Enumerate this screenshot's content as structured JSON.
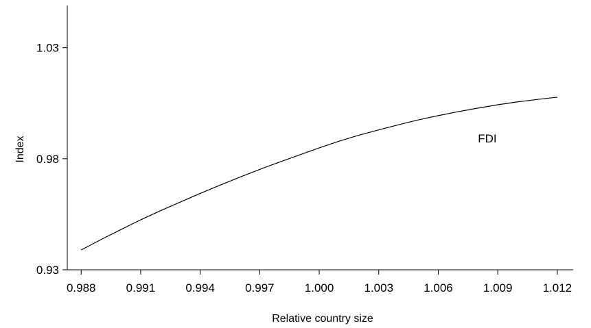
{
  "chart_data": {
    "type": "line",
    "title": "",
    "xlabel": "Relative country size",
    "ylabel": "Index",
    "x_ticks": [
      "0.988",
      "0.991",
      "0.994",
      "0.997",
      "1.000",
      "1.003",
      "1.006",
      "1.009",
      "1.012"
    ],
    "y_ticks": [
      "0.93",
      "0.98",
      "1.03"
    ],
    "xlim": [
      0.9873,
      1.0128
    ],
    "ylim": [
      0.93,
      1.049
    ],
    "grid": false,
    "series": [
      {
        "name": "FDI",
        "x": [
          0.988,
          0.989,
          0.99,
          0.991,
          0.992,
          0.993,
          0.994,
          0.995,
          0.996,
          0.997,
          0.998,
          0.999,
          1.0,
          1.001,
          1.002,
          1.003,
          1.004,
          1.005,
          1.006,
          1.007,
          1.008,
          1.009,
          1.01,
          1.011,
          1.012
        ],
        "values": [
          0.9389,
          0.9436,
          0.9481,
          0.9525,
          0.9566,
          0.9605,
          0.9644,
          0.9681,
          0.9717,
          0.9752,
          0.9785,
          0.9817,
          0.9849,
          0.9879,
          0.9906,
          0.993,
          0.9953,
          0.9975,
          0.9994,
          1.0012,
          1.0028,
          1.0043,
          1.0056,
          1.0067,
          1.0077
        ]
      }
    ]
  }
}
